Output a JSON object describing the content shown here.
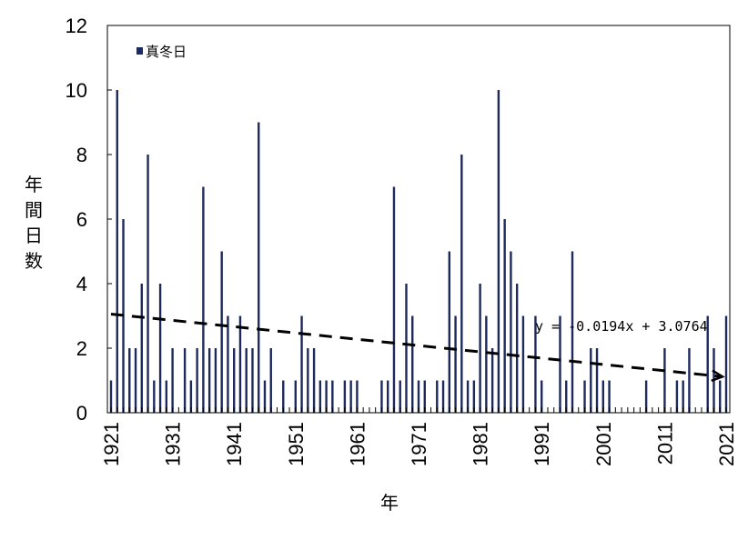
{
  "chart_data": {
    "type": "bar",
    "ylabel": "年間日数",
    "xlabel": "年",
    "ylim": [
      0,
      12
    ],
    "yticks": [
      0,
      2,
      4,
      6,
      8,
      10,
      12
    ],
    "xlim": [
      1921,
      2021
    ],
    "xticks": [
      "1921",
      "1931",
      "1941",
      "1951",
      "1961",
      "1971",
      "1981",
      "1991",
      "2001",
      "2011",
      "2021"
    ],
    "legend": {
      "label": "真冬日",
      "position": "top-left"
    },
    "grid": false,
    "colors": {
      "bar": "#1f2a5c",
      "trend": "#000000"
    },
    "series": [
      {
        "name": "真冬日",
        "x": [
          1921,
          1922,
          1923,
          1924,
          1925,
          1926,
          1927,
          1928,
          1929,
          1930,
          1931,
          1932,
          1933,
          1934,
          1935,
          1936,
          1937,
          1938,
          1939,
          1940,
          1941,
          1942,
          1943,
          1944,
          1945,
          1946,
          1947,
          1948,
          1949,
          1950,
          1951,
          1952,
          1953,
          1954,
          1955,
          1956,
          1957,
          1958,
          1959,
          1960,
          1961,
          1962,
          1963,
          1964,
          1965,
          1966,
          1967,
          1968,
          1969,
          1970,
          1971,
          1972,
          1973,
          1974,
          1975,
          1976,
          1977,
          1978,
          1979,
          1980,
          1981,
          1982,
          1983,
          1984,
          1985,
          1986,
          1987,
          1988,
          1989,
          1990,
          1991,
          1992,
          1993,
          1994,
          1995,
          1996,
          1997,
          1998,
          1999,
          2000,
          2001,
          2002,
          2003,
          2004,
          2005,
          2006,
          2007,
          2008,
          2009,
          2010,
          2011,
          2012,
          2013,
          2014,
          2015,
          2016,
          2017,
          2018,
          2019,
          2020,
          2021
        ],
        "values": [
          1,
          10,
          6,
          2,
          2,
          4,
          8,
          1,
          4,
          1,
          2,
          0,
          2,
          1,
          2,
          7,
          2,
          2,
          5,
          3,
          2,
          3,
          2,
          2,
          9,
          1,
          2,
          0,
          1,
          0,
          1,
          3,
          2,
          2,
          1,
          1,
          1,
          0,
          1,
          1,
          1,
          0,
          0,
          0,
          1,
          1,
          7,
          1,
          4,
          3,
          1,
          1,
          0,
          1,
          1,
          5,
          3,
          8,
          1,
          1,
          4,
          3,
          2,
          10,
          6,
          5,
          4,
          3,
          0,
          3,
          1,
          0,
          0,
          3,
          1,
          5,
          0,
          1,
          2,
          2,
          1,
          1,
          0,
          0,
          0,
          0,
          0,
          1,
          0,
          0,
          2,
          0,
          1,
          1,
          2,
          0,
          0,
          3,
          2,
          1,
          3
        ]
      }
    ],
    "trendline": {
      "equation": "y = -0.0194x + 3.0764",
      "slope": -0.0194,
      "intercept": 3.0764
    }
  }
}
